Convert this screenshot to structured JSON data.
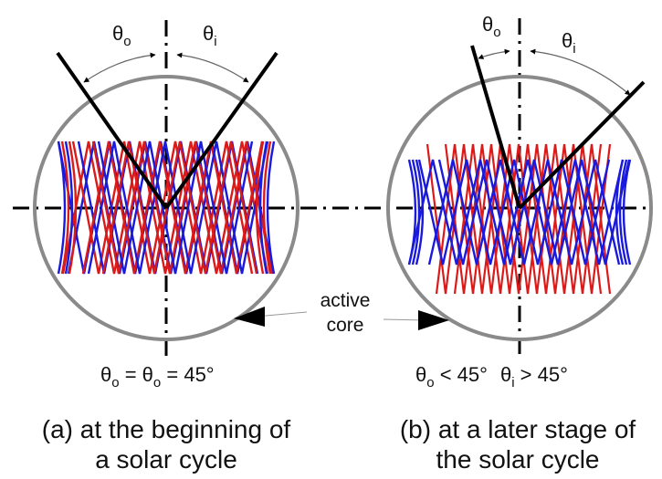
{
  "panels": [
    {
      "theta_o_label": "θ",
      "theta_o_sub": "o",
      "theta_i_label": "θ",
      "theta_i_sub": "i",
      "formula": {
        "a": "θ",
        "a_sub": "o",
        "eq1": " = ",
        "b": "θ",
        "b_sub": "o",
        "eq2": " = 45°"
      },
      "caption_line1": "(a) at the beginning of",
      "caption_line2": "a solar cycle"
    },
    {
      "theta_o_label": "θ",
      "theta_o_sub": "o",
      "theta_i_label": "θ",
      "theta_i_sub": "i",
      "formula": {
        "a": "θ",
        "a_sub": "o",
        "rel1": " < 45°",
        "b": "θ",
        "b_sub": "i",
        "rel2": " > 45°"
      },
      "caption_line1": "(b) at a later stage of",
      "caption_line2": "the solar cycle"
    }
  ],
  "core_label": {
    "line1": "active",
    "line2": "core"
  },
  "colors": {
    "circle": "#8a8a8a",
    "blue": "#1a1adc",
    "red": "#dc1a1a",
    "ink": "#000000"
  }
}
